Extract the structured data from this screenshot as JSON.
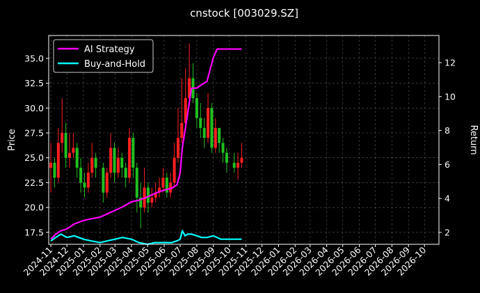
{
  "chart_data": {
    "type": "line",
    "title": "cnstock [003029.SZ]",
    "xlabel": "",
    "ylabel": "Price",
    "ylabel_right": "Return",
    "background": "#000000",
    "grid": true,
    "legend_position": "top-left",
    "x_ticks": [
      "2024-11",
      "2024-12",
      "2025-01",
      "2025-02",
      "2025-03",
      "2025-04",
      "2025-05",
      "2025-06",
      "2025-07",
      "2025-08",
      "2025-09",
      "2025-10",
      "2025-11",
      "2025-12",
      "2026-01",
      "2026-02",
      "2026-03",
      "2026-04",
      "2026-05",
      "2026-06",
      "2026-07",
      "2026-08",
      "2026-09",
      "2026-10"
    ],
    "xlim": [
      "2024-10-28",
      "2026-10-28"
    ],
    "ylim_left": [
      16.3,
      37.3
    ],
    "yticks_left": [
      "17.5",
      "20.0",
      "22.5",
      "25.0",
      "27.5",
      "30.0",
      "32.5",
      "35.0"
    ],
    "ylim_right": [
      1.3,
      13.6
    ],
    "yticks_right": [
      "2",
      "4",
      "6",
      "8",
      "10",
      "12"
    ],
    "candles": {
      "up_color": "#ff2020",
      "down_color": "#20c020",
      "x": [
        "2024-11-01",
        "2024-11-08",
        "2024-11-15",
        "2024-11-22",
        "2024-11-29",
        "2024-12-06",
        "2024-12-13",
        "2024-12-20",
        "2024-12-27",
        "2025-01-03",
        "2025-01-10",
        "2025-01-17",
        "2025-01-24",
        "2025-02-07",
        "2025-02-14",
        "2025-02-21",
        "2025-02-28",
        "2025-03-07",
        "2025-03-14",
        "2025-03-21",
        "2025-03-28",
        "2025-04-04",
        "2025-04-11",
        "2025-04-18",
        "2025-04-25",
        "2025-05-02",
        "2025-05-09",
        "2025-05-16",
        "2025-05-23",
        "2025-05-30",
        "2025-06-06",
        "2025-06-13",
        "2025-06-20",
        "2025-06-27",
        "2025-07-04",
        "2025-07-11",
        "2025-07-18",
        "2025-07-25",
        "2025-08-01",
        "2025-08-08",
        "2025-08-15",
        "2025-08-22",
        "2025-08-29",
        "2025-09-05",
        "2025-09-12",
        "2025-09-19",
        "2025-09-26",
        "2025-10-10",
        "2025-10-17",
        "2025-10-24"
      ],
      "open": [
        24.0,
        24.5,
        23.0,
        26.5,
        27.5,
        25.0,
        25.5,
        26.0,
        24.0,
        22.5,
        22.0,
        23.5,
        25.0,
        24.0,
        21.5,
        23.5,
        26.0,
        23.5,
        25.0,
        24.0,
        23.0,
        27.0,
        24.0,
        21.0,
        20.0,
        22.0,
        20.5,
        21.0,
        21.5,
        22.0,
        23.0,
        21.5,
        22.5,
        25.0,
        27.0,
        28.5,
        31.0,
        33.0,
        31.0,
        29.0,
        28.0,
        27.0,
        30.0,
        26.0,
        28.0,
        26.5,
        25.5,
        24.5,
        24.0,
        24.5
      ],
      "close": [
        24.5,
        23.0,
        26.5,
        27.5,
        25.0,
        25.5,
        26.0,
        24.0,
        22.5,
        22.0,
        23.5,
        25.0,
        24.0,
        21.5,
        23.5,
        26.0,
        23.5,
        25.0,
        24.0,
        23.0,
        27.0,
        24.0,
        21.0,
        20.0,
        22.0,
        20.5,
        21.0,
        21.5,
        22.0,
        23.0,
        21.5,
        22.5,
        25.0,
        27.0,
        28.5,
        31.0,
        33.0,
        31.0,
        29.0,
        28.0,
        27.0,
        30.0,
        26.0,
        28.0,
        26.5,
        25.5,
        24.5,
        24.0,
        24.5,
        25.0
      ],
      "high": [
        26.5,
        25.0,
        28.0,
        31.0,
        28.5,
        27.5,
        27.5,
        26.5,
        25.0,
        23.5,
        24.5,
        26.5,
        25.5,
        24.5,
        24.0,
        27.5,
        26.5,
        26.0,
        25.5,
        24.5,
        28.0,
        27.5,
        24.5,
        22.5,
        24.0,
        22.5,
        22.0,
        22.5,
        23.0,
        24.0,
        23.5,
        23.5,
        26.5,
        30.0,
        33.0,
        34.0,
        36.5,
        34.5,
        31.5,
        30.5,
        29.0,
        31.5,
        30.5,
        29.0,
        28.0,
        27.0,
        26.0,
        25.5,
        25.5,
        26.5
      ],
      "low": [
        21.5,
        22.0,
        22.5,
        25.5,
        24.0,
        24.0,
        25.0,
        23.0,
        21.5,
        21.0,
        21.5,
        23.0,
        23.0,
        20.5,
        21.0,
        23.0,
        22.5,
        23.0,
        23.0,
        22.0,
        22.5,
        23.0,
        19.5,
        17.9,
        19.5,
        19.5,
        20.0,
        20.5,
        21.0,
        21.5,
        21.0,
        21.0,
        22.0,
        24.5,
        26.5,
        28.0,
        30.5,
        30.5,
        28.0,
        27.0,
        26.0,
        26.5,
        25.5,
        25.5,
        25.5,
        24.5,
        23.5,
        23.5,
        22.8,
        24.0
      ]
    },
    "series": [
      {
        "name": "AI Strategy",
        "color": "#ff00ff",
        "axis": "right",
        "x": [
          "2024-11-01",
          "2024-11-10",
          "2024-11-20",
          "2024-12-01",
          "2024-12-15",
          "2025-01-01",
          "2025-01-15",
          "2025-02-01",
          "2025-02-15",
          "2025-03-01",
          "2025-03-15",
          "2025-04-01",
          "2025-04-15",
          "2025-05-01",
          "2025-05-15",
          "2025-06-01",
          "2025-06-15",
          "2025-06-25",
          "2025-07-01",
          "2025-07-05",
          "2025-07-10",
          "2025-07-15",
          "2025-07-22",
          "2025-08-01",
          "2025-08-10",
          "2025-08-20",
          "2025-09-01",
          "2025-09-08",
          "2025-09-15",
          "2025-10-01",
          "2025-10-24"
        ],
        "values": [
          1.6,
          1.9,
          2.1,
          2.2,
          2.5,
          2.7,
          2.8,
          2.9,
          3.1,
          3.3,
          3.5,
          3.8,
          3.9,
          4.1,
          4.3,
          4.5,
          4.6,
          4.8,
          5.5,
          7.0,
          8.0,
          9.0,
          10.5,
          10.5,
          10.7,
          10.9,
          12.3,
          12.8,
          12.8,
          12.8,
          12.8
        ]
      },
      {
        "name": "Buy-and-Hold",
        "color": "#00ffff",
        "axis": "right",
        "x": [
          "2024-11-01",
          "2024-11-10",
          "2024-11-20",
          "2024-12-01",
          "2024-12-15",
          "2025-01-01",
          "2025-01-15",
          "2025-02-01",
          "2025-02-15",
          "2025-03-01",
          "2025-03-15",
          "2025-04-01",
          "2025-04-15",
          "2025-05-01",
          "2025-05-15",
          "2025-06-01",
          "2025-06-15",
          "2025-06-25",
          "2025-07-01",
          "2025-07-05",
          "2025-07-10",
          "2025-07-15",
          "2025-07-22",
          "2025-08-01",
          "2025-08-10",
          "2025-08-20",
          "2025-09-01",
          "2025-09-08",
          "2025-09-15",
          "2025-10-01",
          "2025-10-24"
        ],
        "values": [
          1.5,
          1.7,
          1.9,
          1.7,
          1.8,
          1.6,
          1.5,
          1.4,
          1.5,
          1.6,
          1.7,
          1.6,
          1.4,
          1.3,
          1.4,
          1.4,
          1.4,
          1.5,
          1.6,
          2.1,
          1.8,
          1.9,
          1.9,
          1.8,
          1.7,
          1.7,
          1.8,
          1.7,
          1.6,
          1.6,
          1.6
        ]
      }
    ]
  }
}
